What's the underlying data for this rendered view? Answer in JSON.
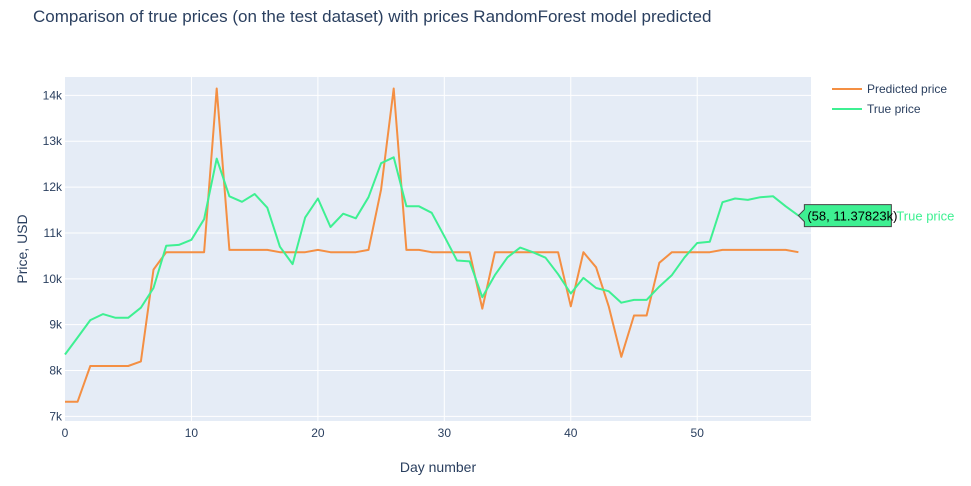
{
  "chart_data": {
    "type": "line",
    "title": "Comparison of true prices (on the test dataset) with prices RandomForest model predicted",
    "xlabel": "Day number",
    "ylabel": "Price, USD",
    "xlim": [
      0,
      59
    ],
    "ylim": [
      6900,
      14400
    ],
    "x_ticks": [
      0,
      10,
      20,
      30,
      40,
      50
    ],
    "y_ticks": [
      7000,
      8000,
      9000,
      10000,
      11000,
      12000,
      13000,
      14000
    ],
    "y_tick_labels": [
      "7k",
      "8k",
      "9k",
      "10k",
      "11k",
      "12k",
      "13k",
      "14k"
    ],
    "legend_position": "top-right",
    "grid": true,
    "colors": {
      "plot_bg": "#e5ecf6",
      "grid": "#ffffff",
      "text": "#2a3f5f"
    },
    "series": [
      {
        "name": "Predicted price",
        "color": "#f48f43",
        "x": [
          0,
          1,
          2,
          3,
          4,
          5,
          6,
          7,
          8,
          9,
          10,
          11,
          12,
          13,
          14,
          15,
          16,
          17,
          18,
          19,
          20,
          21,
          22,
          23,
          24,
          25,
          26,
          27,
          28,
          29,
          30,
          31,
          32,
          33,
          34,
          35,
          36,
          37,
          38,
          39,
          40,
          41,
          42,
          43,
          44,
          45,
          46,
          47,
          48,
          49,
          50,
          51,
          52,
          53,
          54,
          55,
          56,
          57,
          58
        ],
        "values": [
          7320,
          7320,
          8100,
          8100,
          8100,
          8100,
          8200,
          10200,
          10580,
          10580,
          10580,
          10580,
          14150,
          10630,
          10630,
          10630,
          10630,
          10580,
          10580,
          10580,
          10630,
          10580,
          10580,
          10580,
          10630,
          11950,
          14150,
          10630,
          10630,
          10580,
          10580,
          10580,
          10580,
          9350,
          10580,
          10580,
          10580,
          10580,
          10580,
          10580,
          9400,
          10580,
          10250,
          9400,
          8300,
          9200,
          9200,
          10350,
          10580,
          10580,
          10580,
          10580,
          10630,
          10630,
          10630,
          10630,
          10630,
          10630,
          10580
        ]
      },
      {
        "name": "True price",
        "color": "#3ef092",
        "x": [
          0,
          1,
          2,
          3,
          4,
          5,
          6,
          7,
          8,
          9,
          10,
          11,
          12,
          13,
          14,
          15,
          16,
          17,
          18,
          19,
          20,
          21,
          22,
          23,
          24,
          25,
          26,
          27,
          28,
          29,
          30,
          31,
          32,
          33,
          34,
          35,
          36,
          37,
          38,
          39,
          40,
          41,
          42,
          43,
          44,
          45,
          46,
          47,
          48,
          49,
          50,
          51,
          52,
          53,
          54,
          55,
          56,
          57,
          58
        ],
        "values": [
          8350,
          8720,
          9100,
          9230,
          9150,
          9150,
          9370,
          9800,
          10720,
          10740,
          10850,
          11300,
          12620,
          11800,
          11680,
          11850,
          11550,
          10700,
          10320,
          11340,
          11750,
          11130,
          11420,
          11320,
          11780,
          12520,
          12650,
          11580,
          11580,
          11440,
          10930,
          10400,
          10380,
          9600,
          10080,
          10470,
          10680,
          10580,
          10460,
          10100,
          9680,
          10020,
          9800,
          9730,
          9480,
          9540,
          9540,
          9830,
          10080,
          10470,
          10780,
          10810,
          11670,
          11750,
          11720,
          11780,
          11800,
          11580,
          11378
        ]
      }
    ],
    "hover": {
      "label": "(58, 11.37823k)",
      "series_name": "True price",
      "x": 58,
      "y": 11378.23
    }
  }
}
